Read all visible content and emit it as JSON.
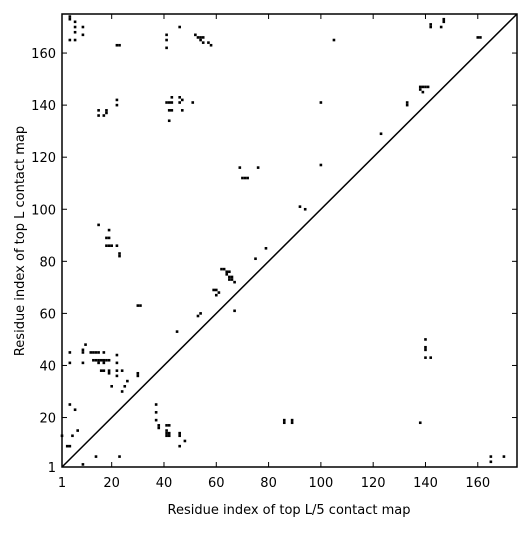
{
  "chart_data": {
    "type": "scatter",
    "xlabel": "Residue index of top L/5 contact map",
    "ylabel": "Residue index of top L contact map",
    "xlim": [
      1,
      175
    ],
    "ylim": [
      1,
      175
    ],
    "xticks": [
      1,
      20,
      40,
      60,
      80,
      100,
      120,
      140,
      160
    ],
    "yticks": [
      1,
      20,
      40,
      60,
      80,
      100,
      120,
      140,
      160
    ],
    "color": "#000000",
    "x": [
      4,
      4,
      6,
      6,
      6,
      4,
      6,
      9,
      9,
      22,
      23,
      41,
      41,
      41,
      46,
      52,
      53,
      54,
      55,
      54,
      55,
      57,
      58,
      105,
      142,
      142,
      147,
      147,
      146,
      160,
      161,
      15,
      15,
      17,
      18,
      18,
      22,
      22,
      41,
      42,
      43,
      43,
      42,
      43,
      46,
      46,
      47,
      47,
      51,
      42,
      100,
      123,
      133,
      133,
      138,
      139,
      140,
      141,
      139,
      138,
      100,
      69,
      76,
      70,
      71,
      72,
      92,
      94,
      15,
      19,
      18,
      19,
      18,
      19,
      20,
      22,
      23,
      23,
      79,
      75,
      62,
      63,
      64,
      65,
      64,
      65,
      66,
      66,
      67,
      65,
      60,
      59,
      60,
      61,
      53,
      54,
      30,
      31,
      67,
      45,
      4,
      4,
      9,
      9,
      10,
      9,
      12,
      13,
      14,
      15,
      17,
      13,
      14,
      15,
      16,
      17,
      18,
      19,
      15,
      17,
      16,
      17,
      19,
      19,
      22,
      22,
      22,
      22,
      20,
      24,
      26,
      24,
      25,
      30,
      30,
      140,
      140,
      140,
      140,
      142,
      138,
      37,
      37,
      37,
      38,
      38,
      41,
      42,
      41,
      41,
      42,
      41,
      42,
      46,
      46,
      48,
      46,
      86,
      86,
      89,
      89,
      4,
      6,
      1,
      5,
      7,
      3,
      4,
      9,
      14,
      23,
      165,
      165,
      170
    ],
    "y": [
      174,
      173,
      172,
      170,
      168,
      165,
      165,
      170,
      167,
      163,
      163,
      167,
      165,
      162,
      170,
      167,
      166,
      166,
      166,
      165,
      164,
      164,
      163,
      165,
      171,
      170,
      173,
      172,
      170,
      166,
      166,
      138,
      136,
      136,
      137,
      138,
      142,
      140,
      141,
      141,
      141,
      143,
      138,
      138,
      143,
      141,
      142,
      138,
      141,
      134,
      141,
      129,
      140,
      141,
      147,
      147,
      147,
      147,
      145,
      146,
      117,
      116,
      116,
      112,
      112,
      112,
      101,
      100,
      94,
      92,
      89,
      89,
      86,
      86,
      86,
      86,
      83,
      82,
      85,
      81,
      77,
      77,
      76,
      76,
      75,
      74,
      74,
      73,
      72,
      73,
      69,
      69,
      67,
      68,
      59,
      60,
      63,
      63,
      61,
      53,
      45,
      41,
      46,
      45,
      48,
      41,
      45,
      45,
      45,
      45,
      45,
      42,
      42,
      42,
      42,
      42,
      42,
      42,
      41,
      41,
      38,
      38,
      38,
      37,
      44,
      41,
      38,
      36,
      32,
      38,
      34,
      30,
      32,
      37,
      36,
      50,
      47,
      46,
      43,
      43,
      18,
      25,
      22,
      19,
      17,
      16,
      17,
      17,
      15,
      14,
      14,
      13,
      13,
      14,
      13,
      11,
      9,
      19,
      18,
      19,
      18,
      25,
      23,
      13,
      13,
      15,
      9,
      9,
      2,
      5,
      5,
      5,
      3,
      5
    ]
  }
}
